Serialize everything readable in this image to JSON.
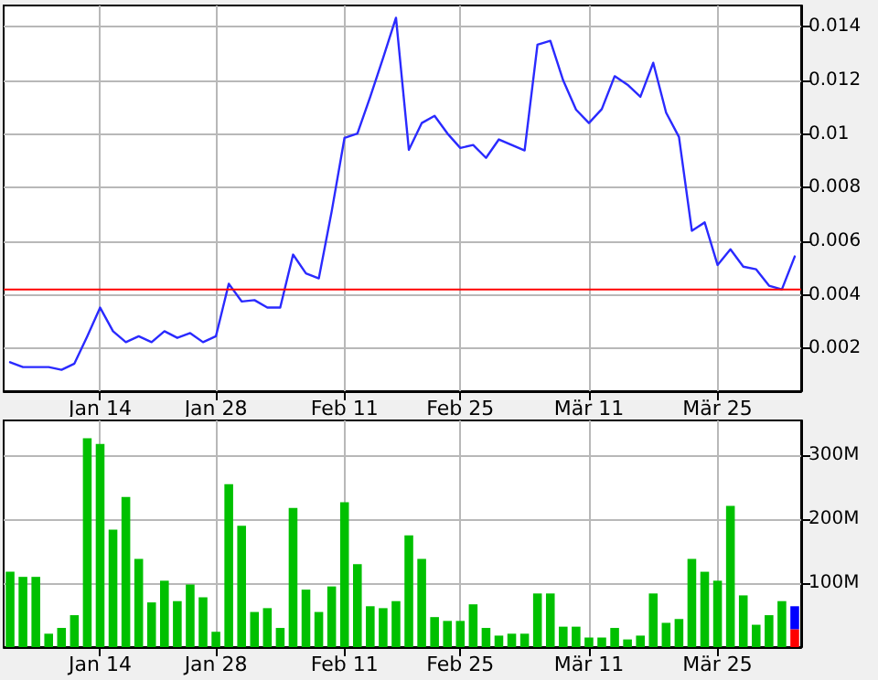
{
  "chart_data": [
    {
      "type": "line",
      "categories": [
        null,
        null,
        null,
        null,
        null,
        null,
        null,
        "Jan 14",
        null,
        null,
        null,
        null,
        null,
        null,
        null,
        null,
        "Jan 28",
        null,
        null,
        null,
        null,
        null,
        null,
        null,
        null,
        null,
        "Feb 11",
        null,
        null,
        null,
        null,
        null,
        null,
        null,
        null,
        "Feb 25",
        null,
        null,
        null,
        null,
        null,
        null,
        null,
        null,
        null,
        "Mär 11",
        null,
        null,
        null,
        null,
        null,
        null,
        null,
        null,
        null,
        "Mär 25",
        null,
        null,
        null,
        null,
        null,
        null
      ],
      "series": [
        {
          "color": "#2a2aff",
          "values": [
            0.00148,
            0.0013,
            0.0013,
            0.0013,
            0.0012,
            0.00143,
            0.00245,
            0.00352,
            0.00264,
            0.00223,
            0.00245,
            0.00223,
            0.00264,
            0.00239,
            0.00257,
            0.00223,
            0.00245,
            0.00441,
            0.00375,
            0.0038,
            0.00352,
            0.00352,
            0.0055,
            0.0048,
            0.00461,
            0.00711,
            0.00986,
            0.01002,
            0.01139,
            0.01284,
            0.01434,
            0.00941,
            0.01041,
            0.01068,
            0.01002,
            0.00948,
            0.00959,
            0.00911,
            0.0098,
            0.00959,
            0.00939,
            0.01334,
            0.01348,
            0.012,
            0.01091,
            0.01041,
            0.01093,
            0.01216,
            0.01184,
            0.01139,
            0.01266,
            0.0108,
            0.00989,
            0.00639,
            0.0067,
            0.00511,
            0.0057,
            0.00505,
            0.00495,
            0.00434,
            0.0042,
            0.00543
          ]
        }
      ],
      "ylim": [
        0.0004,
        0.0148
      ],
      "yticks": [
        0.002,
        0.004,
        0.006,
        0.008,
        0.01,
        0.012,
        0.014
      ],
      "ref_lines": [
        {
          "axis": "y",
          "value": 0.0042,
          "color": "#ff0000"
        }
      ],
      "grid": true,
      "marker": "none",
      "line_style": "solid"
    },
    {
      "type": "bar",
      "stacked": true,
      "categories": [
        null,
        null,
        null,
        null,
        null,
        null,
        null,
        "Jan 14",
        null,
        null,
        null,
        null,
        null,
        null,
        null,
        null,
        "Jan 28",
        null,
        null,
        null,
        null,
        null,
        null,
        null,
        null,
        null,
        "Feb 11",
        null,
        null,
        null,
        null,
        null,
        null,
        null,
        null,
        "Feb 25",
        null,
        null,
        null,
        null,
        null,
        null,
        null,
        null,
        null,
        "Mär 11",
        null,
        null,
        null,
        null,
        null,
        null,
        null,
        null,
        null,
        "Mär 25",
        null,
        null,
        null,
        null,
        null,
        null
      ],
      "series": [
        {
          "color": "#00c000",
          "values": [
            118,
            110,
            110,
            21,
            30,
            50,
            327,
            318,
            184,
            235,
            138,
            70,
            104,
            72,
            98,
            78,
            24,
            255,
            190,
            55,
            61,
            30,
            218,
            90,
            55,
            95,
            227,
            130,
            64,
            61,
            72,
            175,
            138,
            47,
            41,
            41,
            67,
            30,
            18,
            21,
            21,
            84,
            84,
            32,
            32,
            15,
            15,
            30,
            12,
            18,
            84,
            38,
            44,
            138,
            118,
            104,
            221,
            81,
            35,
            50,
            72,
            null
          ]
        },
        {
          "color": "#ff0000",
          "values": [
            null,
            null,
            null,
            null,
            null,
            null,
            null,
            null,
            null,
            null,
            null,
            null,
            null,
            null,
            null,
            null,
            null,
            null,
            null,
            null,
            null,
            null,
            null,
            null,
            null,
            null,
            null,
            null,
            null,
            null,
            null,
            null,
            null,
            null,
            null,
            null,
            null,
            null,
            null,
            null,
            null,
            null,
            null,
            null,
            null,
            null,
            null,
            null,
            null,
            null,
            null,
            null,
            null,
            null,
            null,
            null,
            null,
            null,
            null,
            null,
            null,
            28
          ]
        },
        {
          "color": "#0000ff",
          "values": [
            null,
            null,
            null,
            null,
            null,
            null,
            null,
            null,
            null,
            null,
            null,
            null,
            null,
            null,
            null,
            null,
            null,
            null,
            null,
            null,
            null,
            null,
            null,
            null,
            null,
            null,
            null,
            null,
            null,
            null,
            null,
            null,
            null,
            null,
            null,
            null,
            null,
            null,
            null,
            null,
            null,
            null,
            null,
            null,
            null,
            null,
            null,
            null,
            null,
            null,
            null,
            null,
            null,
            null,
            null,
            null,
            null,
            null,
            null,
            null,
            null,
            36
          ]
        }
      ],
      "ylim": [
        0,
        355
      ],
      "yticks": [
        {
          "value": 100,
          "label": "100M"
        },
        {
          "value": 200,
          "label": "200M"
        },
        {
          "value": 300,
          "label": "300M"
        }
      ],
      "grid": true
    }
  ]
}
